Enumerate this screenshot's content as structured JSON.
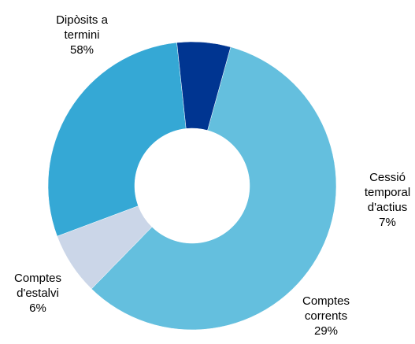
{
  "chart_data": {
    "type": "pie",
    "variant": "donut",
    "title": "",
    "legend": "none",
    "slices": [
      {
        "label_lines": [
          "Dipòsits a",
          "termini"
        ],
        "value_label": "58%",
        "value": 58,
        "color": "#64bfde"
      },
      {
        "label_lines": [
          "Cessió",
          "temporal",
          "d'actius"
        ],
        "value_label": "7%",
        "value": 7,
        "color": "#cbd6e8"
      },
      {
        "label_lines": [
          "Comptes",
          "corrents"
        ],
        "value_label": "29%",
        "value": 29,
        "color": "#35a8d5"
      },
      {
        "label_lines": [
          "Comptes",
          "d'estalvi"
        ],
        "value_label": "6%",
        "value": 6,
        "color": "#003591"
      }
    ]
  }
}
